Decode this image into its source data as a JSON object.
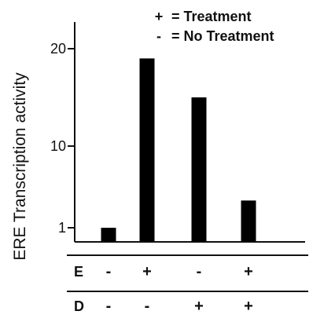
{
  "chart_data": {
    "type": "bar",
    "ylabel": "ERE Transcription activity",
    "y_ticks": [
      "1",
      "10",
      "20"
    ],
    "y_tick_values": [
      1,
      10,
      20
    ],
    "ylim": [
      0,
      22
    ],
    "legend": [
      {
        "symbol": "+",
        "label": "= Treatment"
      },
      {
        "symbol": "-",
        "label": "= No Treatment"
      }
    ],
    "legend_position": "top-right",
    "grid": false,
    "conditions": [
      {
        "label": "E",
        "signs": [
          "-",
          "+",
          "-",
          "+"
        ]
      },
      {
        "label": "D",
        "signs": [
          "-",
          "-",
          "+",
          "+"
        ]
      }
    ],
    "values": [
      1,
      19,
      15,
      4
    ],
    "bar_color": "#000000"
  }
}
